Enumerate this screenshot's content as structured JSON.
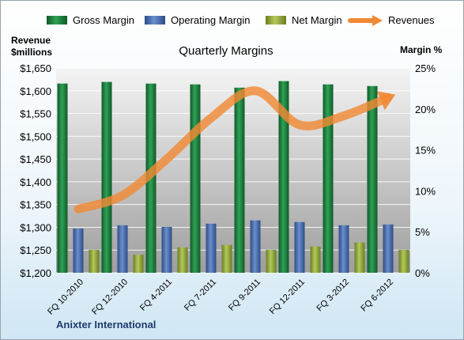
{
  "chart_data": {
    "type": "bar",
    "title": "Quarterly Margins",
    "company": "Anixter International",
    "left_axis_title": [
      "Revenue",
      "$millions"
    ],
    "right_axis_title": "Margin %",
    "categories": [
      "FQ 10-2010",
      "FQ 12-2010",
      "FQ 4-2011",
      "FQ 7-2011",
      "FQ 9-2011",
      "FQ 12-2011",
      "FQ 3-2012",
      "FQ 6-2012"
    ],
    "series": [
      {
        "name": "Gross Margin",
        "axis": "right",
        "color": "#1e7a3c",
        "values": [
          23.1,
          23.3,
          23.1,
          23.0,
          22.6,
          23.4,
          23.0,
          22.8
        ]
      },
      {
        "name": "Operating Margin",
        "axis": "right",
        "color": "#4a6fae",
        "values": [
          5.4,
          5.8,
          5.6,
          6.0,
          6.4,
          6.2,
          5.8,
          5.9
        ]
      },
      {
        "name": "Net Margin",
        "axis": "right",
        "color": "#8ea53a",
        "values": [
          2.8,
          2.2,
          3.1,
          3.4,
          2.8,
          3.2,
          3.7,
          2.8
        ]
      },
      {
        "name": "Revenues",
        "axis": "left",
        "type": "line",
        "color": "#f08a34",
        "values": [
          1340,
          1370,
          1450,
          1540,
          1600,
          1525,
          1545,
          1585
        ]
      }
    ],
    "left_axis": {
      "min": 1200,
      "max": 1650,
      "ticks": [
        "$1,200",
        "$1,250",
        "$1,300",
        "$1,350",
        "$1,400",
        "$1,450",
        "$1,500",
        "$1,550",
        "$1,600",
        "$1,650"
      ]
    },
    "right_axis": {
      "min": 0,
      "max": 25,
      "ticks": [
        "0%",
        "5%",
        "10%",
        "15%",
        "20%",
        "25%"
      ]
    },
    "legend_position": "top",
    "grid": true
  }
}
